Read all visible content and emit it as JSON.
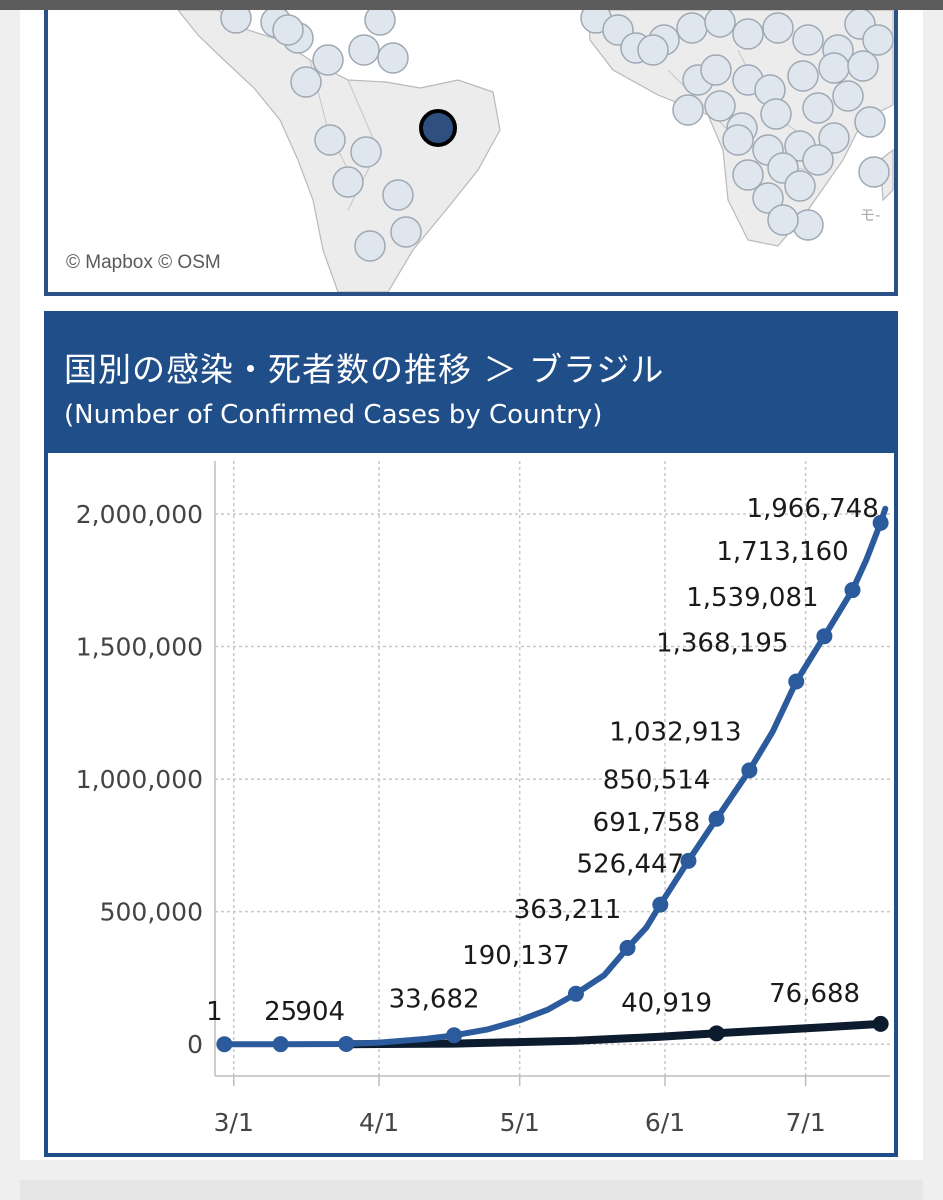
{
  "map": {
    "attribution": "© Mapbox  © OSM",
    "edge_label": "モ-"
  },
  "chart_panel": {
    "title": "国別の感染・死者数の推移 ＞ ブラジル",
    "subtitle": "(Number of Confirmed Cases by Country)"
  },
  "colors": {
    "header": "#1f4e89",
    "cases_line": "#2b5b9c",
    "deaths_line": "#0d1b2e",
    "grid": "#c8c8c8",
    "map_marker": "#dfe6ee",
    "highlight_marker": "#2e4f80"
  },
  "chart_data": {
    "type": "line",
    "title": "",
    "xlabel": "",
    "ylabel": "",
    "x_range": [
      "2020-02-26",
      "2020-07-19"
    ],
    "ylim": [
      -120000,
      2200000
    ],
    "grid": true,
    "legend": "none",
    "x_ticks": [
      {
        "label": "3/1",
        "date": "2020-03-01"
      },
      {
        "label": "4/1",
        "date": "2020-04-01"
      },
      {
        "label": "5/1",
        "date": "2020-05-01"
      },
      {
        "label": "6/1",
        "date": "2020-06-01"
      },
      {
        "label": "7/1",
        "date": "2020-07-01"
      }
    ],
    "y_ticks": [
      {
        "value": 0,
        "label": "0"
      },
      {
        "value": 500000,
        "label": "500,000"
      },
      {
        "value": 1000000,
        "label": "1,000,000"
      },
      {
        "value": 1500000,
        "label": "1,500,000"
      },
      {
        "value": 2000000,
        "label": "2,000,000"
      }
    ],
    "series": [
      {
        "key": "cases",
        "points": [
          {
            "x": "2020-02-28",
            "y": 1,
            "label": "1"
          },
          {
            "x": "2020-03-11",
            "y": 25,
            "label": "25"
          },
          {
            "x": "2020-03-25",
            "y": 904,
            "label": "904"
          },
          {
            "x": "2020-04-01",
            "y": 6000
          },
          {
            "x": "2020-04-11",
            "y": 20000
          },
          {
            "x": "2020-04-17",
            "y": 33682,
            "label": "33,682"
          },
          {
            "x": "2020-04-24",
            "y": 55000
          },
          {
            "x": "2020-05-01",
            "y": 90000
          },
          {
            "x": "2020-05-07",
            "y": 130000
          },
          {
            "x": "2020-05-13",
            "y": 190137,
            "label": "190,137"
          },
          {
            "x": "2020-05-19",
            "y": 260000
          },
          {
            "x": "2020-05-24",
            "y": 363211,
            "label": "363,211"
          },
          {
            "x": "2020-05-28",
            "y": 440000
          },
          {
            "x": "2020-05-31",
            "y": 526447,
            "label": "526,447"
          },
          {
            "x": "2020-06-06",
            "y": 691758,
            "label": "691,758"
          },
          {
            "x": "2020-06-12",
            "y": 850514,
            "label": "850,514"
          },
          {
            "x": "2020-06-19",
            "y": 1032913,
            "label": "1,032,913"
          },
          {
            "x": "2020-06-24",
            "y": 1180000
          },
          {
            "x": "2020-06-29",
            "y": 1368195,
            "label": "1,368,195"
          },
          {
            "x": "2020-07-05",
            "y": 1539081,
            "label": "1,539,081"
          },
          {
            "x": "2020-07-11",
            "y": 1713160,
            "label": "1,713,160"
          },
          {
            "x": "2020-07-14",
            "y": 1830000
          },
          {
            "x": "2020-07-17",
            "y": 1966748,
            "label": "1,966,748"
          },
          {
            "x": "2020-07-18",
            "y": 2020000
          }
        ]
      },
      {
        "key": "deaths",
        "points": [
          {
            "x": "2020-03-25",
            "y": 0
          },
          {
            "x": "2020-04-17",
            "y": 2100
          },
          {
            "x": "2020-05-13",
            "y": 13000
          },
          {
            "x": "2020-05-31",
            "y": 28000
          },
          {
            "x": "2020-06-12",
            "y": 40919,
            "label": "40,919"
          },
          {
            "x": "2020-06-24",
            "y": 53000
          },
          {
            "x": "2020-07-05",
            "y": 64000
          },
          {
            "x": "2020-07-17",
            "y": 76688,
            "label": "76,688"
          }
        ]
      }
    ]
  }
}
